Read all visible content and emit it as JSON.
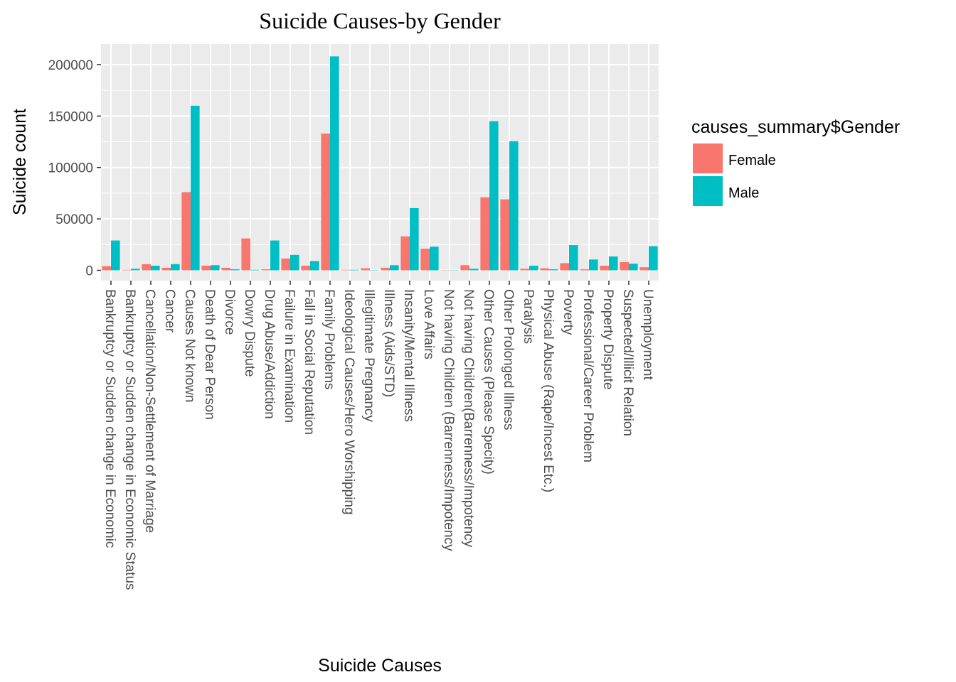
{
  "chart_data": {
    "type": "bar",
    "title": "Suicide Causes-by Gender",
    "xlabel": "Suicide Causes",
    "ylabel": "Suicide count",
    "ylim": [
      -10000,
      220000
    ],
    "yticks": [
      0,
      50000,
      100000,
      150000,
      200000
    ],
    "ytick_labels": [
      "0",
      "50000",
      "100000",
      "150000",
      "200000"
    ],
    "grid": true,
    "legend": {
      "title": "causes_summary$Gender",
      "position": "right"
    },
    "categories": [
      "Bankruptcy or Sudden change in Economic",
      "Bankruptcy or Sudden change in Economic Status",
      "Cancellation/Non-Settlement of Marriage",
      "Cancer",
      "Causes Not known",
      "Death of Dear Person",
      "Divorce",
      "Dowry Dispute",
      "Drug Abuse/Addiction",
      "Failure in Examination",
      "Fall in Social Reputation",
      "Family Problems",
      "Ideological Causes/Hero Worshipping",
      "Illegitimate Pregnancy",
      "Illness (Aids/STD)",
      "Insanity/Mental Illness",
      "Love Affairs",
      "Not having Children (Barrenness/Impotency",
      "Not having Children(Barrenness/Impotency",
      "Other Causes (Please Specity)",
      "Other Prolonged Illness",
      "Paralysis",
      "Physical Abuse (Rape/Incest Etc.)",
      "Poverty",
      "Professional/Career Problem",
      "Property Dispute",
      "Suspected/Illicit Relation",
      "Unemployment"
    ],
    "series": [
      {
        "name": "Female",
        "color": "#F8766D",
        "values": [
          4000,
          500,
          6000,
          2500,
          76000,
          4500,
          2500,
          31000,
          1000,
          11500,
          4500,
          133000,
          500,
          2000,
          2500,
          33000,
          21000,
          300,
          5000,
          71000,
          69000,
          1500,
          2000,
          7000,
          1000,
          4500,
          8000,
          3000
        ]
      },
      {
        "name": "Male",
        "color": "#00BFC4",
        "values": [
          29000,
          1500,
          4500,
          6000,
          160000,
          5000,
          1000,
          500,
          29000,
          15000,
          9000,
          208000,
          500,
          300,
          5000,
          60500,
          23000,
          300,
          1500,
          145000,
          125500,
          4500,
          1000,
          24500,
          10500,
          13500,
          6500,
          23500
        ]
      }
    ]
  }
}
